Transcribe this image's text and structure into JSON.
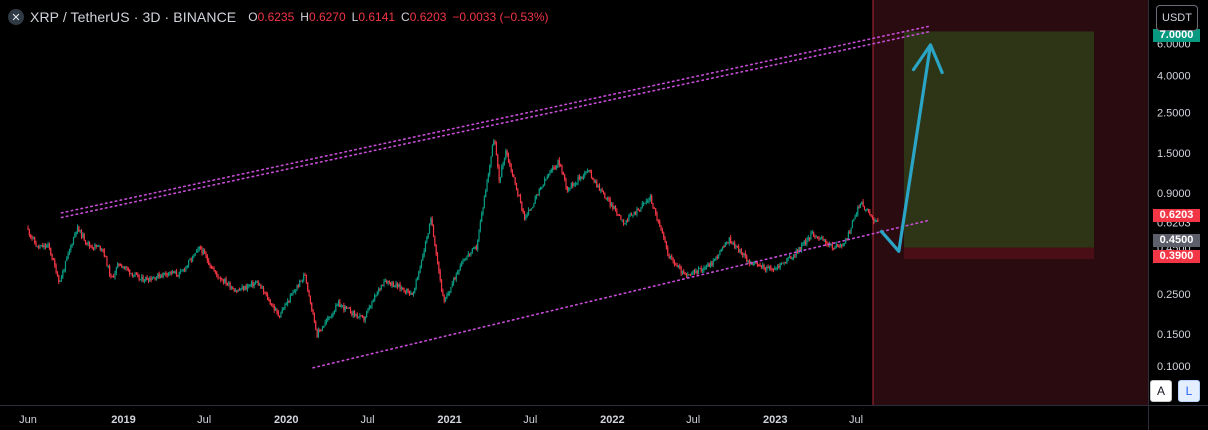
{
  "header": {
    "symbol_title": "XRP / TetherUS · 3D · BINANCE",
    "ohlc": [
      {
        "key": "O",
        "value": "0.6235"
      },
      {
        "key": "H",
        "value": "0.6270"
      },
      {
        "key": "L",
        "value": "0.6141"
      },
      {
        "key": "C",
        "value": "0.6203"
      }
    ],
    "change": "−0.0033 (−0.53%)"
  },
  "currency_button": "USDT",
  "scale_buttons": {
    "auto": "A",
    "log": "L"
  },
  "chart_data": {
    "type": "candlestick",
    "scale": "log",
    "ylim": [
      0.085,
      8.3
    ],
    "y_ticks": [
      "0.1000",
      "0.1500",
      "0.2500",
      "0.4500",
      "0.6203",
      "0.9000",
      "1.5000",
      "2.5000",
      "4.0000",
      "6.0000",
      "7.0000"
    ],
    "x_ticks": [
      "Jun",
      "2019",
      "Jul",
      "2020",
      "Jul",
      "2021",
      "Jul",
      "2022",
      "Jul",
      "2023",
      "Jul"
    ],
    "price_labels": [
      {
        "text": "7.0000",
        "value": 7.0,
        "color": "#089981"
      },
      {
        "text": "0.6203",
        "value": 0.6203,
        "color": "#f23645"
      },
      {
        "text": "0.4500",
        "value": 0.45,
        "color": "#5d606b"
      },
      {
        "text": "0.3900",
        "value": 0.39,
        "color": "#f23645"
      }
    ],
    "series": [
      {
        "points": [
          [
            "2018-06-01",
            0.58
          ],
          [
            "2018-06-25",
            0.45
          ],
          [
            "2018-07-20",
            0.46
          ],
          [
            "2018-08-14",
            0.29
          ],
          [
            "2018-09-21",
            0.58
          ],
          [
            "2018-10-20",
            0.46
          ],
          [
            "2018-11-18",
            0.45
          ],
          [
            "2018-12-08",
            0.3
          ],
          [
            "2018-12-25",
            0.37
          ],
          [
            "2019-02-10",
            0.3
          ],
          [
            "2019-03-15",
            0.31
          ],
          [
            "2019-04-15",
            0.33
          ],
          [
            "2019-05-10",
            0.32
          ],
          [
            "2019-06-25",
            0.45
          ],
          [
            "2019-07-31",
            0.32
          ],
          [
            "2019-09-15",
            0.26
          ],
          [
            "2019-10-31",
            0.29
          ],
          [
            "2019-12-18",
            0.19
          ],
          [
            "2020-02-15",
            0.32
          ],
          [
            "2020-03-13",
            0.15
          ],
          [
            "2020-04-30",
            0.22
          ],
          [
            "2020-06-25",
            0.18
          ],
          [
            "2020-08-10",
            0.3
          ],
          [
            "2020-10-15",
            0.25
          ],
          [
            "2020-11-24",
            0.65
          ],
          [
            "2020-12-22",
            0.22
          ],
          [
            "2021-01-31",
            0.38
          ],
          [
            "2021-03-05",
            0.45
          ],
          [
            "2021-04-14",
            1.85
          ],
          [
            "2021-04-25",
            1.05
          ],
          [
            "2021-05-10",
            1.55
          ],
          [
            "2021-06-22",
            0.65
          ],
          [
            "2021-08-10",
            1.1
          ],
          [
            "2021-09-06",
            1.35
          ],
          [
            "2021-09-25",
            0.95
          ],
          [
            "2021-11-10",
            1.2
          ],
          [
            "2021-12-20",
            0.85
          ],
          [
            "2022-01-31",
            0.62
          ],
          [
            "2022-03-30",
            0.85
          ],
          [
            "2022-05-12",
            0.4
          ],
          [
            "2022-06-18",
            0.31
          ],
          [
            "2022-08-15",
            0.37
          ],
          [
            "2022-09-23",
            0.5
          ],
          [
            "2022-11-10",
            0.37
          ],
          [
            "2022-12-30",
            0.34
          ],
          [
            "2023-02-15",
            0.41
          ],
          [
            "2023-03-29",
            0.54
          ],
          [
            "2023-05-15",
            0.45
          ],
          [
            "2023-06-10",
            0.48
          ],
          [
            "2023-07-13",
            0.8
          ],
          [
            "2023-08-20",
            0.62
          ]
        ]
      }
    ],
    "annotations": [
      {
        "type": "channel_line",
        "from": [
          "2018-08-15",
          0.7
        ],
        "to": [
          "2023-12-15",
          7.5
        ]
      },
      {
        "type": "channel_line",
        "from": [
          "2018-08-15",
          0.66
        ],
        "to": [
          "2023-12-15",
          7.0
        ]
      },
      {
        "type": "channel_line",
        "from": [
          "2020-03-01",
          0.098
        ],
        "to": [
          "2023-12-15",
          0.64
        ]
      },
      {
        "type": "target_zone",
        "top": 7.0,
        "bottom": 0.45
      },
      {
        "type": "stop_zone",
        "top": 0.45,
        "bottom": 0.39
      },
      {
        "type": "projection_arrow",
        "points": [
          [
            "2023-08-25",
            0.56
          ],
          [
            "2023-10-05",
            0.43
          ],
          [
            "2023-12-15",
            5.9
          ]
        ]
      }
    ],
    "colors": {
      "up": "#089981",
      "down": "#f23645",
      "channel": "#c64cd6",
      "arrow": "#2aa5c6",
      "target_zone": "#2e3516",
      "future_zone": "#2a0c10"
    }
  }
}
